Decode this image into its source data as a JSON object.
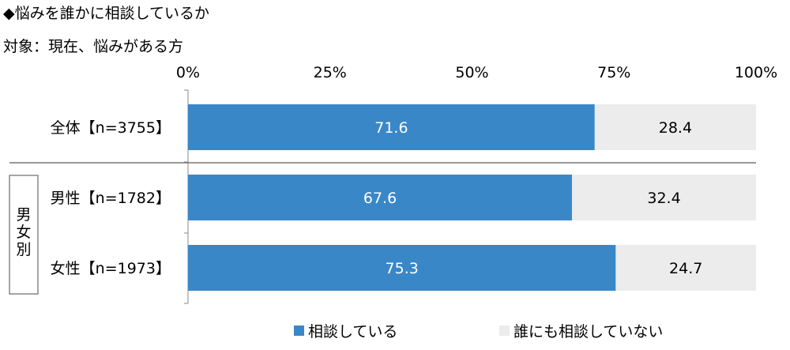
{
  "chart_data": {
    "type": "bar",
    "orientation": "horizontal",
    "stacked": true,
    "title": "◆悩みを誰かに相談しているか",
    "subtitle": "対象：現在、悩みがある方",
    "categories": [
      "全体【n=3755】",
      "男性【n=1782】",
      "女性【n=1973】"
    ],
    "group_label": "男女別",
    "series": [
      {
        "name": "相談している",
        "values": [
          71.6,
          67.6,
          75.3
        ],
        "color": "#3a87c8"
      },
      {
        "name": "誰にも相談していない",
        "values": [
          28.4,
          32.4,
          24.7
        ],
        "color": "#ececec"
      }
    ],
    "value_labels": [
      [
        "71.6",
        "67.6",
        "75.3"
      ],
      [
        "28.4",
        "32.4",
        "24.7"
      ]
    ],
    "xlim": [
      0,
      100
    ],
    "x_ticks": [
      "0%",
      "25%",
      "50%",
      "75%",
      "100%"
    ],
    "x_axis_position": "top",
    "legend_position": "bottom"
  }
}
